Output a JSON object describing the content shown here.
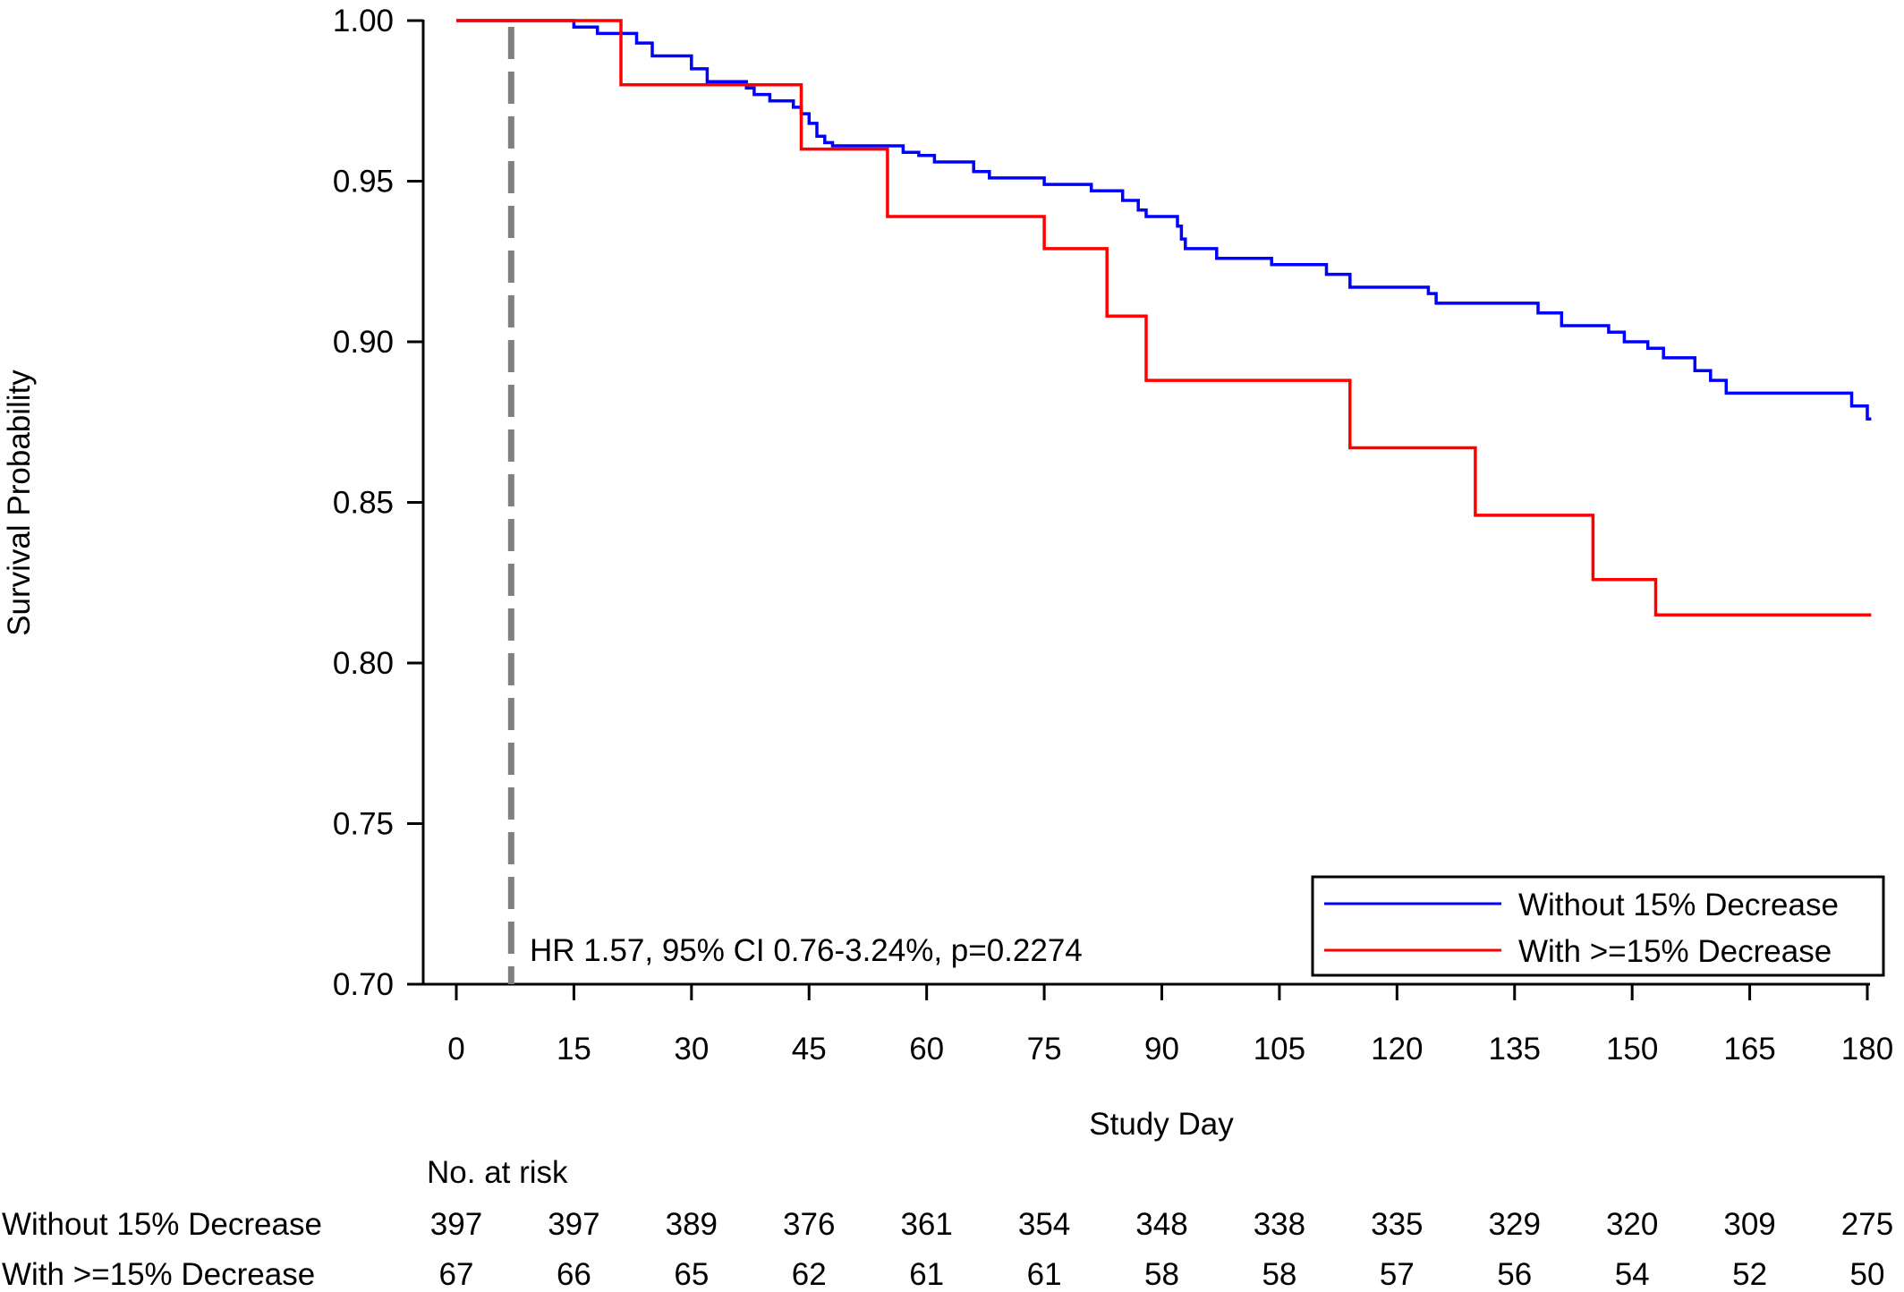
{
  "chart_data": {
    "type": "line",
    "subtype": "kaplan-meier step",
    "ylabel": "Survival Probability",
    "xlabel": "Study Day",
    "xlim": [
      0,
      180
    ],
    "ylim": [
      0.7,
      1.0
    ],
    "x_ticks": [
      0,
      15,
      30,
      45,
      60,
      75,
      90,
      105,
      120,
      135,
      150,
      165,
      180
    ],
    "y_ticks": [
      0.7,
      0.75,
      0.8,
      0.85,
      0.9,
      0.95,
      1.0
    ],
    "y_tick_labels": [
      "0.70",
      "0.75",
      "0.80",
      "0.85",
      "0.90",
      "0.95",
      "1.00"
    ],
    "grid": false,
    "legend_position": "bottom-right",
    "reference_line": {
      "x": 7,
      "style": "dashed",
      "color": "#808080"
    },
    "annotation": "HR 1.57, 95% CI 0.76-3.24%, p=0.2274",
    "series": [
      {
        "name": "Without 15% Decrease",
        "color": "#0000ff",
        "points": [
          [
            0,
            1.0
          ],
          [
            15,
            0.998
          ],
          [
            18,
            0.996
          ],
          [
            23,
            0.993
          ],
          [
            25,
            0.989
          ],
          [
            30,
            0.985
          ],
          [
            32,
            0.981
          ],
          [
            37,
            0.979
          ],
          [
            38,
            0.977
          ],
          [
            40,
            0.975
          ],
          [
            43,
            0.973
          ],
          [
            44,
            0.971
          ],
          [
            45,
            0.968
          ],
          [
            46,
            0.964
          ],
          [
            47,
            0.962
          ],
          [
            48,
            0.961
          ],
          [
            57,
            0.959
          ],
          [
            59,
            0.958
          ],
          [
            61,
            0.956
          ],
          [
            66,
            0.953
          ],
          [
            68,
            0.951
          ],
          [
            75,
            0.949
          ],
          [
            81,
            0.947
          ],
          [
            85,
            0.944
          ],
          [
            87,
            0.941
          ],
          [
            88,
            0.939
          ],
          [
            92,
            0.936
          ],
          [
            92.5,
            0.932
          ],
          [
            93,
            0.929
          ],
          [
            97,
            0.926
          ],
          [
            104,
            0.924
          ],
          [
            111,
            0.921
          ],
          [
            114,
            0.917
          ],
          [
            124,
            0.915
          ],
          [
            125,
            0.912
          ],
          [
            138,
            0.909
          ],
          [
            141,
            0.905
          ],
          [
            147,
            0.903
          ],
          [
            149,
            0.9
          ],
          [
            152,
            0.898
          ],
          [
            154,
            0.895
          ],
          [
            158,
            0.891
          ],
          [
            160,
            0.888
          ],
          [
            162,
            0.884
          ],
          [
            178,
            0.88
          ],
          [
            180,
            0.876
          ],
          [
            180.5,
            0.876
          ]
        ]
      },
      {
        "name": "With >=15% Decrease",
        "color": "#ff0000",
        "points": [
          [
            0,
            1.0
          ],
          [
            21,
            0.98
          ],
          [
            44,
            0.96
          ],
          [
            55,
            0.939
          ],
          [
            75,
            0.929
          ],
          [
            83,
            0.908
          ],
          [
            88,
            0.888
          ],
          [
            114,
            0.867
          ],
          [
            130,
            0.846
          ],
          [
            145,
            0.826
          ],
          [
            153,
            0.815
          ],
          [
            180.5,
            0.815
          ]
        ]
      }
    ],
    "risk_table": {
      "title": "No. at risk",
      "times": [
        0,
        15,
        30,
        45,
        60,
        75,
        90,
        105,
        120,
        135,
        150,
        165,
        180
      ],
      "rows": [
        {
          "label": "Without 15% Decrease",
          "values": [
            397,
            397,
            389,
            376,
            361,
            354,
            348,
            338,
            335,
            329,
            320,
            309,
            275
          ]
        },
        {
          "label": "With >=15% Decrease",
          "values": [
            67,
            66,
            65,
            62,
            61,
            61,
            58,
            58,
            57,
            56,
            54,
            52,
            50
          ]
        }
      ]
    }
  }
}
